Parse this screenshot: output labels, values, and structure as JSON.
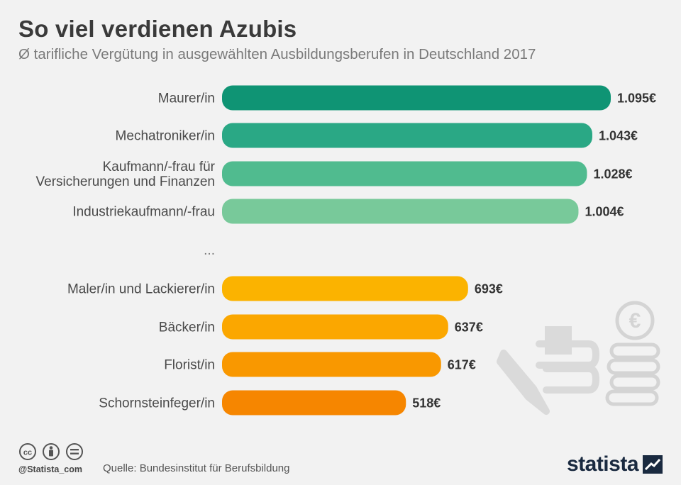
{
  "header": {
    "title": "So viel verdienen Azubis",
    "subtitle": "Ø tarifliche Vergütung in ausgewählten Ausbildungsberufen in Deutschland 2017"
  },
  "chart_data": {
    "type": "bar",
    "orientation": "horizontal",
    "unit": "€",
    "categories": [
      "Maurer/in",
      "Mechatroniker/in",
      "Kaufmann/-frau für\nVersicherungen und Finanzen",
      "Industriekaufmann/-frau",
      "Maler/in und Lackierer/in",
      "Bäcker/in",
      "Florist/in",
      "Schornsteinfeger/in"
    ],
    "values": [
      1095,
      1043,
      1028,
      1004,
      693,
      637,
      617,
      518
    ],
    "value_labels": [
      "1.095€",
      "1.043€",
      "1.028€",
      "1.004€",
      "693€",
      "637€",
      "617€",
      "518€"
    ],
    "colors": [
      "#0f9474",
      "#2aa885",
      "#50bb8f",
      "#78c99a",
      "#fbb300",
      "#fba700",
      "#f99800",
      "#f68600"
    ],
    "gap_marker": "...",
    "gap_after_index": 3,
    "xlim": [
      0,
      1095
    ],
    "grid": false,
    "legend": "none"
  },
  "footer": {
    "source": "Quelle: Bundesinstitut für Berufsbildung",
    "handle": "@Statista_com",
    "brand": "statista",
    "license_icons": [
      "cc-icon",
      "by-icon",
      "nd-icon"
    ]
  },
  "decoration": {
    "icons": [
      "pencil-book-icon",
      "euro-coin-stack-icon"
    ]
  }
}
